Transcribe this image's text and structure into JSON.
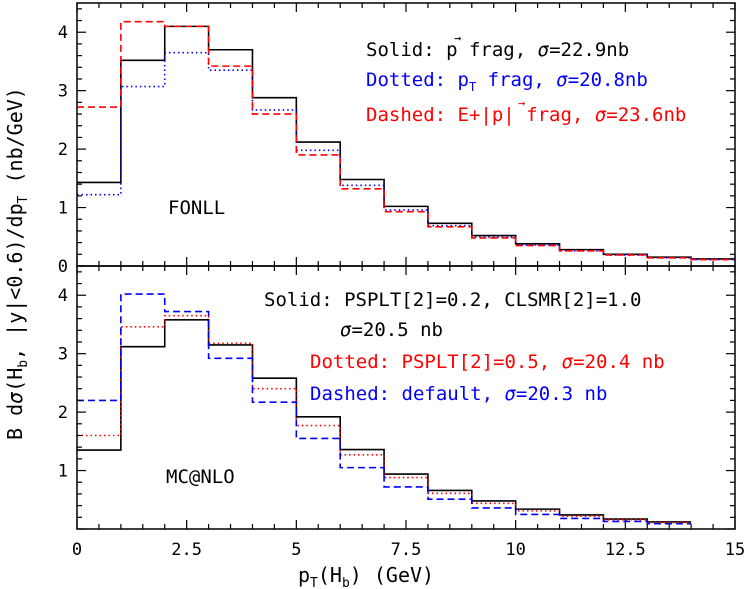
{
  "colors": {
    "black": "#000000",
    "blue": "#0000ff",
    "red": "#ff0000"
  },
  "chart_data": [
    {
      "type": "line",
      "style": "step histogram",
      "x_bin_edges": [
        0,
        1,
        2,
        3,
        4,
        5,
        6,
        7,
        8,
        9,
        10,
        11,
        12,
        13,
        14,
        15
      ],
      "xlim": [
        0,
        15
      ],
      "ylim": [
        0,
        4.5
      ],
      "y_ticks": [
        "0",
        "1",
        "2",
        "3",
        "4"
      ],
      "label": "FONLL",
      "legend": [
        {
          "prefix": "Solid: ",
          "vec": "p",
          "rest": " frag, ",
          "sigma": "σ",
          "value": "=22.9nb"
        },
        {
          "prefix": "Dotted: ",
          "base": "p",
          "sub": "T",
          "rest": " frag, ",
          "sigma": "σ",
          "value": "=20.8nb"
        },
        {
          "prefix": "Dashed: E+|",
          "vec": "p",
          "rest": "| frag, ",
          "sigma": "σ",
          "value": "=23.6nb"
        }
      ],
      "series": [
        {
          "name": "Solid",
          "color": "black",
          "dash": "solid",
          "values": [
            1.43,
            3.52,
            4.1,
            3.7,
            2.88,
            2.12,
            1.48,
            1.02,
            0.73,
            0.52,
            0.38,
            0.28,
            0.2,
            0.15,
            0.12
          ]
        },
        {
          "name": "Dotted",
          "color": "blue",
          "dash": "dotted",
          "values": [
            1.22,
            3.07,
            3.65,
            3.35,
            2.67,
            1.98,
            1.38,
            0.96,
            0.69,
            0.49,
            0.36,
            0.26,
            0.19,
            0.14,
            0.11
          ]
        },
        {
          "name": "Dashed",
          "color": "red",
          "dash": "dashed",
          "values": [
            2.72,
            4.18,
            4.1,
            3.42,
            2.6,
            1.9,
            1.32,
            0.93,
            0.67,
            0.48,
            0.35,
            0.26,
            0.19,
            0.14,
            0.11
          ]
        }
      ]
    },
    {
      "type": "line",
      "style": "step histogram",
      "x_bin_edges": [
        0,
        1,
        2,
        3,
        4,
        5,
        6,
        7,
        8,
        9,
        10,
        11,
        12,
        13,
        14
      ],
      "xlim": [
        0,
        15
      ],
      "ylim": [
        0,
        4.5
      ],
      "y_ticks": [
        "1",
        "2",
        "3",
        "4"
      ],
      "x_ticks": [
        "0",
        "2.5",
        "5",
        "7.5",
        "10",
        "12.5",
        "15"
      ],
      "label": "MC@NLO",
      "legend": [
        {
          "text": "Solid: PSPLT[2]=0.2, CLSMR[2]=1.0"
        },
        {
          "sigma": "σ",
          "text": "=20.5 nb"
        },
        {
          "prefix": "Dotted: PSPLT[2]=0.5, ",
          "sigma": "σ",
          "text": "=20.4 nb"
        },
        {
          "prefix": "Dashed: default, ",
          "sigma": "σ",
          "text": "=20.3 nb"
        }
      ],
      "series": [
        {
          "name": "Solid",
          "color": "black",
          "dash": "solid",
          "values": [
            1.35,
            3.12,
            3.58,
            3.15,
            2.58,
            1.92,
            1.36,
            0.94,
            0.66,
            0.48,
            0.34,
            0.24,
            0.17,
            0.12
          ]
        },
        {
          "name": "Dotted",
          "color": "red",
          "dash": "dotted",
          "values": [
            1.6,
            3.46,
            3.65,
            3.18,
            2.4,
            1.77,
            1.27,
            0.88,
            0.61,
            0.44,
            0.31,
            0.22,
            0.16,
            0.11
          ]
        },
        {
          "name": "Dashed",
          "color": "blue",
          "dash": "dashed",
          "values": [
            2.2,
            4.02,
            3.72,
            2.92,
            2.17,
            1.55,
            1.05,
            0.72,
            0.51,
            0.36,
            0.25,
            0.18,
            0.13,
            0.09
          ]
        }
      ]
    }
  ],
  "axes": {
    "xlabel": {
      "base": "p",
      "sub": "T",
      "mid": "(H",
      "sub2": "b",
      "end": ") (GeV)"
    },
    "ylabel": {
      "a": "B d",
      "sigma": "σ",
      "b": "(H",
      "sub1": "b",
      "c": ", |y|<0.6)/dp",
      "sub2": "T",
      "d": " (nb/GeV)"
    }
  }
}
